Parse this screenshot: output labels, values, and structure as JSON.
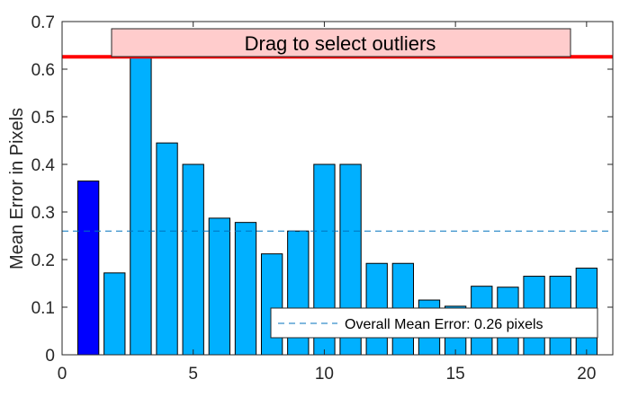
{
  "chart_data": {
    "type": "bar",
    "xlabel": "",
    "ylabel": "Mean Error in Pixels",
    "xlim": [
      0,
      21
    ],
    "ylim": [
      0,
      0.7
    ],
    "xticks": [
      0,
      5,
      10,
      15,
      20
    ],
    "yticks": [
      0,
      0.1,
      0.2,
      0.3,
      0.4,
      0.5,
      0.6,
      0.7
    ],
    "categories": [
      1,
      2,
      3,
      4,
      5,
      6,
      7,
      8,
      9,
      10,
      11,
      12,
      13,
      14,
      15,
      16,
      17,
      18,
      19,
      20
    ],
    "values": [
      0.365,
      0.172,
      0.63,
      0.445,
      0.4,
      0.287,
      0.278,
      0.212,
      0.26,
      0.4,
      0.4,
      0.192,
      0.192,
      0.115,
      0.102,
      0.144,
      0.142,
      0.165,
      0.165,
      0.182
    ],
    "selected_index": 0,
    "colors": {
      "bar": "#00b0ff",
      "selected_bar": "#0000ff",
      "threshold_line": "#ff0000",
      "mean_line": "#0072bd",
      "banner_fill": "#ffcccc"
    },
    "threshold": 0.626,
    "overall_mean": 0.26,
    "banner_text": "Drag to select outliers",
    "legend": {
      "placement": "bottom-right",
      "entries": [
        "Overall Mean Error: 0.26 pixels"
      ]
    },
    "grid": false
  }
}
